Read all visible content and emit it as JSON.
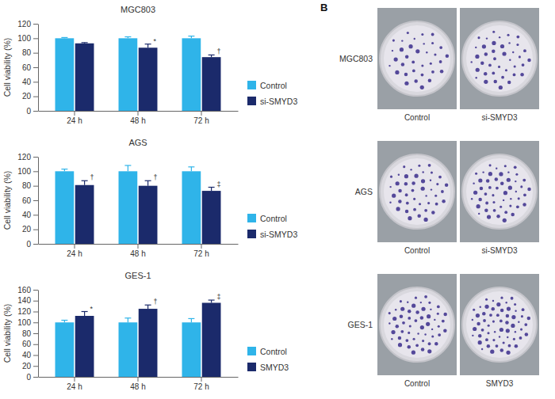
{
  "chart_data": [
    {
      "type": "bar",
      "title": "MGC803",
      "y_label": "Cell viability (%)",
      "categories": [
        "24 h",
        "48 h",
        "72 h"
      ],
      "series": [
        {
          "name": "Control",
          "color": "#2fb4e9",
          "values": [
            100,
            100,
            100
          ],
          "errors": [
            1,
            2,
            3
          ],
          "significance": [
            null,
            null,
            null
          ]
        },
        {
          "name": "si-SMYD3",
          "color": "#1b2a6b",
          "values": [
            93,
            87,
            74
          ],
          "errors": [
            1,
            5,
            3
          ],
          "significance": [
            null,
            "*",
            "†"
          ]
        }
      ],
      "ylim": [
        0,
        120
      ],
      "yticks": [
        0,
        20,
        40,
        60,
        80,
        100,
        120
      ],
      "grid": false,
      "legend": "right"
    },
    {
      "type": "bar",
      "title": "AGS",
      "y_label": "Cell viability (%)",
      "categories": [
        "24 h",
        "48 h",
        "72 h"
      ],
      "series": [
        {
          "name": "Control",
          "color": "#2fb4e9",
          "values": [
            100,
            100,
            100
          ],
          "errors": [
            3,
            8,
            6
          ],
          "significance": [
            null,
            null,
            null
          ]
        },
        {
          "name": "si-SMYD3",
          "color": "#1b2a6b",
          "values": [
            81,
            80,
            73
          ],
          "errors": [
            6,
            7,
            5
          ],
          "significance": [
            "†",
            "†",
            "‡"
          ]
        }
      ],
      "ylim": [
        0,
        120
      ],
      "yticks": [
        0,
        20,
        40,
        60,
        80,
        100,
        120
      ],
      "grid": false,
      "legend": "right"
    },
    {
      "type": "bar",
      "title": "GES-1",
      "y_label": "Cell viability (%)",
      "categories": [
        "24 h",
        "48 h",
        "72 h"
      ],
      "series": [
        {
          "name": "Control",
          "color": "#2fb4e9",
          "values": [
            100,
            100,
            100
          ],
          "errors": [
            4,
            8,
            7
          ],
          "significance": [
            null,
            null,
            null
          ]
        },
        {
          "name": "SMYD3",
          "color": "#1b2a6b",
          "values": [
            112,
            125,
            136
          ],
          "errors": [
            8,
            7,
            5
          ],
          "significance": [
            "*",
            "†",
            "‡"
          ]
        }
      ],
      "ylim": [
        0,
        160
      ],
      "yticks": [
        0,
        20,
        40,
        60,
        80,
        100,
        120,
        140,
        160
      ],
      "grid": false,
      "legend": "right"
    }
  ],
  "panel_b": {
    "label": "B",
    "rows": [
      {
        "label": "MGC803",
        "plates": [
          "Control",
          "si-SMYD3"
        ]
      },
      {
        "label": "AGS",
        "plates": [
          "Control",
          "si-SMYD3"
        ]
      },
      {
        "label": "GES-1",
        "plates": [
          "Control",
          "SMYD3"
        ]
      }
    ]
  }
}
